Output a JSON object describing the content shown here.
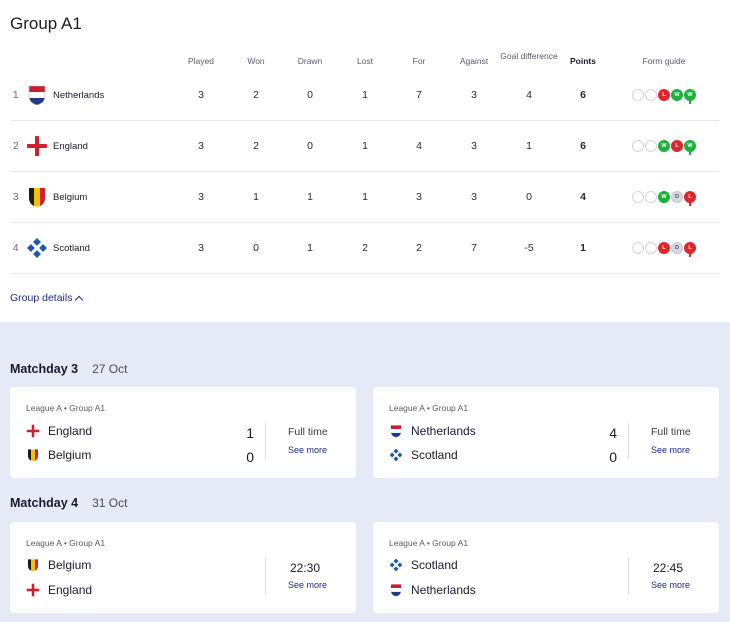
{
  "group": {
    "title": "Group A1",
    "details_label": "Group details"
  },
  "table": {
    "headers": {
      "played": "Played",
      "won": "Won",
      "drawn": "Drawn",
      "lost": "Lost",
      "for": "For",
      "against": "Against",
      "goal_diff": "Goal difference",
      "points": "Points",
      "form": "Form guide"
    },
    "rows": [
      {
        "pos": "1",
        "team": "Netherlands",
        "flag": "netherlands-flag-icon",
        "played": "3",
        "won": "2",
        "drawn": "0",
        "lost": "1",
        "for": "7",
        "against": "3",
        "gd": "4",
        "points": "6",
        "form": [
          "",
          "",
          "L",
          "W",
          "W"
        ]
      },
      {
        "pos": "2",
        "team": "England",
        "flag": "england-flag-icon",
        "played": "3",
        "won": "2",
        "drawn": "0",
        "lost": "1",
        "for": "4",
        "against": "3",
        "gd": "1",
        "points": "6",
        "form": [
          "",
          "",
          "W",
          "L",
          "W"
        ]
      },
      {
        "pos": "3",
        "team": "Belgium",
        "flag": "belgium-flag-icon",
        "played": "3",
        "won": "1",
        "drawn": "1",
        "lost": "1",
        "for": "3",
        "against": "3",
        "gd": "0",
        "points": "4",
        "form": [
          "",
          "",
          "W",
          "D",
          "L"
        ]
      },
      {
        "pos": "4",
        "team": "Scotland",
        "flag": "scotland-flag-icon",
        "played": "3",
        "won": "0",
        "drawn": "1",
        "lost": "2",
        "for": "2",
        "against": "7",
        "gd": "-5",
        "points": "1",
        "form": [
          "",
          "",
          "L",
          "D",
          "L"
        ]
      }
    ]
  },
  "matchdays": [
    {
      "label": "Matchday 3",
      "date": "27 Oct",
      "matches": [
        {
          "competition": "League A • Group A1",
          "home": "England",
          "away": "Belgium",
          "home_score": "1",
          "away_score": "0",
          "status": "Full time",
          "see_more": "See more"
        },
        {
          "competition": "League A • Group A1",
          "home": "Netherlands",
          "away": "Scotland",
          "home_score": "4",
          "away_score": "0",
          "status": "Full time",
          "see_more": "See more"
        }
      ]
    },
    {
      "label": "Matchday 4",
      "date": "31 Oct",
      "matches": [
        {
          "competition": "League A • Group A1",
          "home": "Belgium",
          "away": "England",
          "time": "22:30",
          "see_more": "See more"
        },
        {
          "competition": "League A • Group A1",
          "home": "Scotland",
          "away": "Netherlands",
          "time": "22:45",
          "see_more": "See more"
        }
      ]
    }
  ],
  "colors": {
    "accent": "#1e2a8a",
    "win": "#1db13d",
    "loss": "#e0262b",
    "draw": "#d8d8e2",
    "background_lower": "#e6eaf7"
  }
}
